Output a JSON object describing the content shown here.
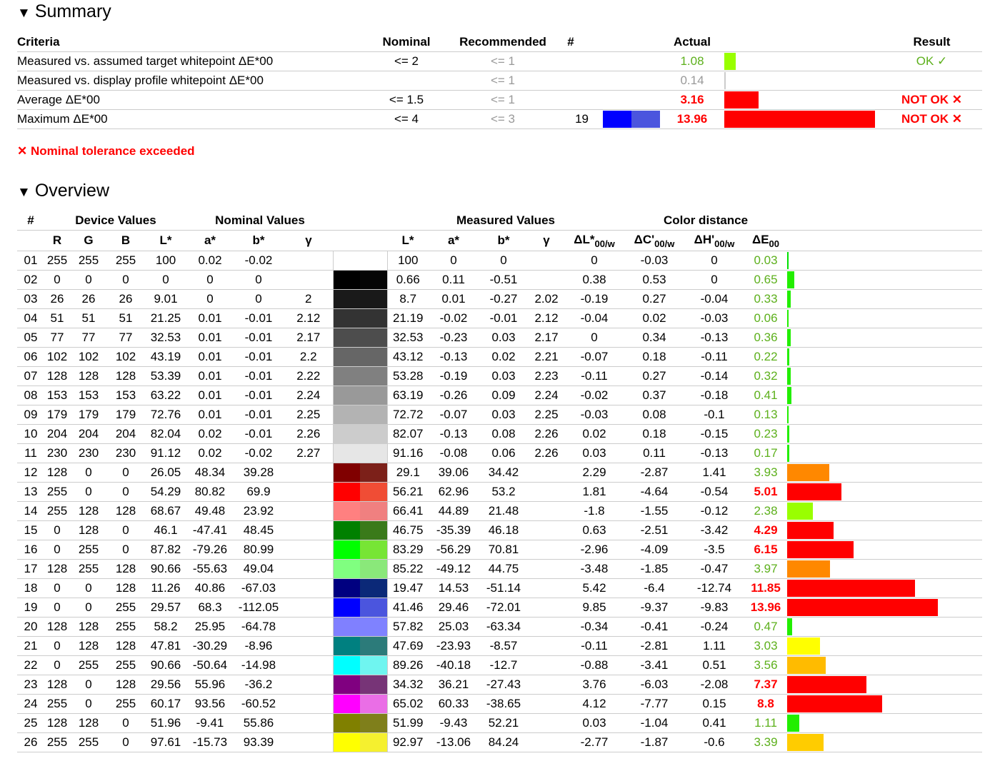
{
  "summary": {
    "title": "Summary",
    "columns": {
      "criteria": "Criteria",
      "nominal": "Nominal",
      "recommended": "Recommended",
      "num": "#",
      "actual": "Actual",
      "result": "Result"
    },
    "rows": [
      {
        "criteria": "Measured vs. assumed target whitepoint ΔE*00",
        "nominal": "<= 2",
        "recommended": "<= 1",
        "num": "",
        "actual": "1.08",
        "actual_class": "okc",
        "bar_fraction": 0.014,
        "bar_color": "#99ff00",
        "result": "OK ✓",
        "result_class": "okc"
      },
      {
        "criteria": "Measured vs. display profile whitepoint ΔE*00",
        "nominal": "",
        "recommended": "<= 1",
        "num": "",
        "actual": "0.14",
        "actual_class": "grey",
        "bar_fraction": 0.002,
        "bar_color": "#cccccc",
        "result": "",
        "result_class": ""
      },
      {
        "criteria": "Average ΔE*00",
        "nominal": "<= 1.5",
        "recommended": "<= 1",
        "num": "",
        "actual": "3.16",
        "actual_class": "bad",
        "bar_fraction": 0.041,
        "bar_color": "#ff0000",
        "result": "NOT OK ✕",
        "result_class": "bad"
      },
      {
        "criteria": "Maximum ΔE*00",
        "nominal": "<= 4",
        "recommended": "<= 3",
        "num": "19",
        "swatch": [
          "#0000ff",
          "#4b55de"
        ],
        "actual": "13.96",
        "actual_class": "bad",
        "bar_fraction": 0.18,
        "bar_color": "#ff0000",
        "result": "NOT OK ✕",
        "result_class": "bad"
      }
    ],
    "warning": "✕ Nominal tolerance exceeded"
  },
  "overview": {
    "title": "Overview",
    "group_headers": {
      "num": "#",
      "device": "Device Values",
      "nominal": "Nominal Values",
      "measured": "Measured Values",
      "distance": "Color distance"
    },
    "sub_headers": {
      "r": "R",
      "g": "G",
      "b": "B",
      "L": "L*",
      "a": "a*",
      "bstar": "b*",
      "gamma": "γ",
      "mL": "L*",
      "ma": "a*",
      "mb": "b*",
      "mgamma": "γ",
      "dL": "ΔL*",
      "dC": "ΔC'",
      "dH": "ΔH'",
      "dE": "ΔE",
      "sub00w": "00/w",
      "sub00": "00"
    },
    "rows": [
      {
        "n": "01",
        "R": "255",
        "G": "255",
        "B": "255",
        "L": "100",
        "a": "0.02",
        "b": "-0.02",
        "g": "",
        "sw": [
          "#ffffff",
          "#ffffff"
        ],
        "mL": "100",
        "ma": "0",
        "mb": "0",
        "mg": "",
        "dL": "0",
        "dC": "-0.03",
        "dH": "0",
        "dE": "0.03",
        "dEc": "okc",
        "bar": 0.03,
        "barc": "#00e000"
      },
      {
        "n": "02",
        "R": "0",
        "G": "0",
        "B": "0",
        "L": "0",
        "a": "0",
        "b": "0",
        "g": "",
        "sw": [
          "#000000",
          "#050505"
        ],
        "mL": "0.66",
        "ma": "0.11",
        "mb": "-0.51",
        "mg": "",
        "dL": "0.38",
        "dC": "0.53",
        "dH": "0",
        "dE": "0.65",
        "dEc": "okc",
        "bar": 0.65,
        "barc": "#22ee00"
      },
      {
        "n": "03",
        "R": "26",
        "G": "26",
        "B": "26",
        "L": "9.01",
        "a": "0",
        "b": "0",
        "g": "2",
        "sw": [
          "#1a1a1a",
          "#191919"
        ],
        "mL": "8.7",
        "ma": "0.01",
        "mb": "-0.27",
        "mg": "2.02",
        "dL": "-0.19",
        "dC": "0.27",
        "dH": "-0.04",
        "dE": "0.33",
        "dEc": "okc",
        "bar": 0.33,
        "barc": "#22ee00"
      },
      {
        "n": "04",
        "R": "51",
        "G": "51",
        "B": "51",
        "L": "21.25",
        "a": "0.01",
        "b": "-0.01",
        "g": "2.12",
        "sw": [
          "#333333",
          "#333333"
        ],
        "mL": "21.19",
        "ma": "-0.02",
        "mb": "-0.01",
        "mg": "2.12",
        "dL": "-0.04",
        "dC": "0.02",
        "dH": "-0.03",
        "dE": "0.06",
        "dEc": "okc",
        "bar": 0.06,
        "barc": "#22ee00"
      },
      {
        "n": "05",
        "R": "77",
        "G": "77",
        "B": "77",
        "L": "32.53",
        "a": "0.01",
        "b": "-0.01",
        "g": "2.17",
        "sw": [
          "#4d4d4d",
          "#4d4d4d"
        ],
        "mL": "32.53",
        "ma": "-0.23",
        "mb": "0.03",
        "mg": "2.17",
        "dL": "0",
        "dC": "0.34",
        "dH": "-0.13",
        "dE": "0.36",
        "dEc": "okc",
        "bar": 0.36,
        "barc": "#22ee00"
      },
      {
        "n": "06",
        "R": "102",
        "G": "102",
        "B": "102",
        "L": "43.19",
        "a": "0.01",
        "b": "-0.01",
        "g": "2.2",
        "sw": [
          "#666666",
          "#666666"
        ],
        "mL": "43.12",
        "ma": "-0.13",
        "mb": "0.02",
        "mg": "2.21",
        "dL": "-0.07",
        "dC": "0.18",
        "dH": "-0.11",
        "dE": "0.22",
        "dEc": "okc",
        "bar": 0.22,
        "barc": "#22ee00"
      },
      {
        "n": "07",
        "R": "128",
        "G": "128",
        "B": "128",
        "L": "53.39",
        "a": "0.01",
        "b": "-0.01",
        "g": "2.22",
        "sw": [
          "#808080",
          "#808080"
        ],
        "mL": "53.28",
        "ma": "-0.19",
        "mb": "0.03",
        "mg": "2.23",
        "dL": "-0.11",
        "dC": "0.27",
        "dH": "-0.14",
        "dE": "0.32",
        "dEc": "okc",
        "bar": 0.32,
        "barc": "#22ee00"
      },
      {
        "n": "08",
        "R": "153",
        "G": "153",
        "B": "153",
        "L": "63.22",
        "a": "0.01",
        "b": "-0.01",
        "g": "2.24",
        "sw": [
          "#999999",
          "#999999"
        ],
        "mL": "63.19",
        "ma": "-0.26",
        "mb": "0.09",
        "mg": "2.24",
        "dL": "-0.02",
        "dC": "0.37",
        "dH": "-0.18",
        "dE": "0.41",
        "dEc": "okc",
        "bar": 0.41,
        "barc": "#22ee00"
      },
      {
        "n": "09",
        "R": "179",
        "G": "179",
        "B": "179",
        "L": "72.76",
        "a": "0.01",
        "b": "-0.01",
        "g": "2.25",
        "sw": [
          "#b3b3b3",
          "#b3b3b3"
        ],
        "mL": "72.72",
        "ma": "-0.07",
        "mb": "0.03",
        "mg": "2.25",
        "dL": "-0.03",
        "dC": "0.08",
        "dH": "-0.1",
        "dE": "0.13",
        "dEc": "okc",
        "bar": 0.13,
        "barc": "#22ee00"
      },
      {
        "n": "10",
        "R": "204",
        "G": "204",
        "B": "204",
        "L": "82.04",
        "a": "0.02",
        "b": "-0.01",
        "g": "2.26",
        "sw": [
          "#cccccc",
          "#cccccc"
        ],
        "mL": "82.07",
        "ma": "-0.13",
        "mb": "0.08",
        "mg": "2.26",
        "dL": "0.02",
        "dC": "0.18",
        "dH": "-0.15",
        "dE": "0.23",
        "dEc": "okc",
        "bar": 0.23,
        "barc": "#22ee00"
      },
      {
        "n": "11",
        "R": "230",
        "G": "230",
        "B": "230",
        "L": "91.12",
        "a": "0.02",
        "b": "-0.02",
        "g": "2.27",
        "sw": [
          "#e6e6e6",
          "#e6e6e6"
        ],
        "mL": "91.16",
        "ma": "-0.08",
        "mb": "0.06",
        "mg": "2.26",
        "dL": "0.03",
        "dC": "0.11",
        "dH": "-0.13",
        "dE": "0.17",
        "dEc": "okc",
        "bar": 0.17,
        "barc": "#22ee00"
      },
      {
        "n": "12",
        "R": "128",
        "G": "0",
        "B": "0",
        "L": "26.05",
        "a": "48.34",
        "b": "39.28",
        "g": "",
        "sw": [
          "#800000",
          "#7c2019"
        ],
        "mL": "29.1",
        "ma": "39.06",
        "mb": "34.42",
        "mg": "",
        "dL": "2.29",
        "dC": "-2.87",
        "dH": "1.41",
        "dE": "3.93",
        "dEc": "okc",
        "bar": 3.93,
        "barc": "#ff8800"
      },
      {
        "n": "13",
        "R": "255",
        "G": "0",
        "B": "0",
        "L": "54.29",
        "a": "80.82",
        "b": "69.9",
        "g": "",
        "sw": [
          "#ff0000",
          "#f04d35"
        ],
        "mL": "56.21",
        "ma": "62.96",
        "mb": "53.2",
        "mg": "",
        "dL": "1.81",
        "dC": "-4.64",
        "dH": "-0.54",
        "dE": "5.01",
        "dEc": "bad",
        "bar": 5.01,
        "barc": "#ff0000"
      },
      {
        "n": "14",
        "R": "255",
        "G": "128",
        "B": "128",
        "L": "68.67",
        "a": "49.48",
        "b": "23.92",
        "g": "",
        "sw": [
          "#ff8080",
          "#f08080"
        ],
        "mL": "66.41",
        "ma": "44.89",
        "mb": "21.48",
        "mg": "",
        "dL": "-1.8",
        "dC": "-1.55",
        "dH": "-0.12",
        "dE": "2.38",
        "dEc": "okc",
        "bar": 2.38,
        "barc": "#99ff00"
      },
      {
        "n": "15",
        "R": "0",
        "G": "128",
        "B": "0",
        "L": "46.1",
        "a": "-47.41",
        "b": "48.45",
        "g": "",
        "sw": [
          "#008000",
          "#3a7a1a"
        ],
        "mL": "46.75",
        "ma": "-35.39",
        "mb": "46.18",
        "mg": "",
        "dL": "0.63",
        "dC": "-2.51",
        "dH": "-3.42",
        "dE": "4.29",
        "dEc": "bad",
        "bar": 4.29,
        "barc": "#ff0000"
      },
      {
        "n": "16",
        "R": "0",
        "G": "255",
        "B": "0",
        "L": "87.82",
        "a": "-79.26",
        "b": "80.99",
        "g": "",
        "sw": [
          "#00ff00",
          "#77e535"
        ],
        "mL": "83.29",
        "ma": "-56.29",
        "mb": "70.81",
        "mg": "",
        "dL": "-2.96",
        "dC": "-4.09",
        "dH": "-3.5",
        "dE": "6.15",
        "dEc": "bad",
        "bar": 6.15,
        "barc": "#ff0000"
      },
      {
        "n": "17",
        "R": "128",
        "G": "255",
        "B": "128",
        "L": "90.66",
        "a": "-55.63",
        "b": "49.04",
        "g": "",
        "sw": [
          "#80ff80",
          "#8ae87a"
        ],
        "mL": "85.22",
        "ma": "-49.12",
        "mb": "44.75",
        "mg": "",
        "dL": "-3.48",
        "dC": "-1.85",
        "dH": "-0.47",
        "dE": "3.97",
        "dEc": "okc",
        "bar": 3.97,
        "barc": "#ff8800"
      },
      {
        "n": "18",
        "R": "0",
        "G": "0",
        "B": "128",
        "L": "11.26",
        "a": "40.86",
        "b": "-67.03",
        "g": "",
        "sw": [
          "#000080",
          "#0b2978"
        ],
        "mL": "19.47",
        "ma": "14.53",
        "mb": "-51.14",
        "mg": "",
        "dL": "5.42",
        "dC": "-6.4",
        "dH": "-12.74",
        "dE": "11.85",
        "dEc": "bad",
        "bar": 11.85,
        "barc": "#ff0000"
      },
      {
        "n": "19",
        "R": "0",
        "G": "0",
        "B": "255",
        "L": "29.57",
        "a": "68.3",
        "b": "-112.05",
        "g": "",
        "sw": [
          "#0000ff",
          "#4b55de"
        ],
        "mL": "41.46",
        "ma": "29.46",
        "mb": "-72.01",
        "mg": "",
        "dL": "9.85",
        "dC": "-9.37",
        "dH": "-9.83",
        "dE": "13.96",
        "dEc": "bad",
        "bar": 13.96,
        "barc": "#ff0000"
      },
      {
        "n": "20",
        "R": "128",
        "G": "128",
        "B": "255",
        "L": "58.2",
        "a": "25.95",
        "b": "-64.78",
        "g": "",
        "sw": [
          "#8080ff",
          "#7f82ff"
        ],
        "mL": "57.82",
        "ma": "25.03",
        "mb": "-63.34",
        "mg": "",
        "dL": "-0.34",
        "dC": "-0.41",
        "dH": "-0.24",
        "dE": "0.47",
        "dEc": "okc",
        "bar": 0.47,
        "barc": "#22ee00"
      },
      {
        "n": "21",
        "R": "0",
        "G": "128",
        "B": "128",
        "L": "47.81",
        "a": "-30.29",
        "b": "-8.96",
        "g": "",
        "sw": [
          "#008080",
          "#2c7b7a"
        ],
        "mL": "47.69",
        "ma": "-23.93",
        "mb": "-8.57",
        "mg": "",
        "dL": "-0.11",
        "dC": "-2.81",
        "dH": "1.11",
        "dE": "3.03",
        "dEc": "okc",
        "bar": 3.03,
        "barc": "#ffff00"
      },
      {
        "n": "22",
        "R": "0",
        "G": "255",
        "B": "255",
        "L": "90.66",
        "a": "-50.64",
        "b": "-14.98",
        "g": "",
        "sw": [
          "#00ffff",
          "#6ff5f0"
        ],
        "mL": "89.26",
        "ma": "-40.18",
        "mb": "-12.7",
        "mg": "",
        "dL": "-0.88",
        "dC": "-3.41",
        "dH": "0.51",
        "dE": "3.56",
        "dEc": "okc",
        "bar": 3.56,
        "barc": "#ffbb00"
      },
      {
        "n": "23",
        "R": "128",
        "G": "0",
        "B": "128",
        "L": "29.56",
        "a": "55.96",
        "b": "-36.2",
        "g": "",
        "sw": [
          "#800080",
          "#773477"
        ],
        "mL": "34.32",
        "ma": "36.21",
        "mb": "-27.43",
        "mg": "",
        "dL": "3.76",
        "dC": "-6.03",
        "dH": "-2.08",
        "dE": "7.37",
        "dEc": "bad",
        "bar": 7.37,
        "barc": "#ff0000"
      },
      {
        "n": "24",
        "R": "255",
        "G": "0",
        "B": "255",
        "L": "60.17",
        "a": "93.56",
        "b": "-60.52",
        "g": "",
        "sw": [
          "#ff00ff",
          "#ea6ee6"
        ],
        "mL": "65.02",
        "ma": "60.33",
        "mb": "-38.65",
        "mg": "",
        "dL": "4.12",
        "dC": "-7.77",
        "dH": "0.15",
        "dE": "8.8",
        "dEc": "bad",
        "bar": 8.8,
        "barc": "#ff0000"
      },
      {
        "n": "25",
        "R": "128",
        "G": "128",
        "B": "0",
        "L": "51.96",
        "a": "-9.41",
        "b": "55.86",
        "g": "",
        "sw": [
          "#808000",
          "#7f7f1b"
        ],
        "mL": "51.99",
        "ma": "-9.43",
        "mb": "52.21",
        "mg": "",
        "dL": "0.03",
        "dC": "-1.04",
        "dH": "0.41",
        "dE": "1.11",
        "dEc": "okc",
        "bar": 1.11,
        "barc": "#22ee00"
      },
      {
        "n": "26",
        "R": "255",
        "G": "255",
        "B": "0",
        "L": "97.61",
        "a": "-15.73",
        "b": "93.39",
        "g": "",
        "sw": [
          "#ffff00",
          "#f5f02f"
        ],
        "mL": "92.97",
        "ma": "-13.06",
        "mb": "84.24",
        "mg": "",
        "dL": "-2.77",
        "dC": "-1.87",
        "dH": "-0.6",
        "dE": "3.39",
        "dEc": "okc",
        "bar": 3.39,
        "barc": "#ffcc00"
      }
    ]
  }
}
